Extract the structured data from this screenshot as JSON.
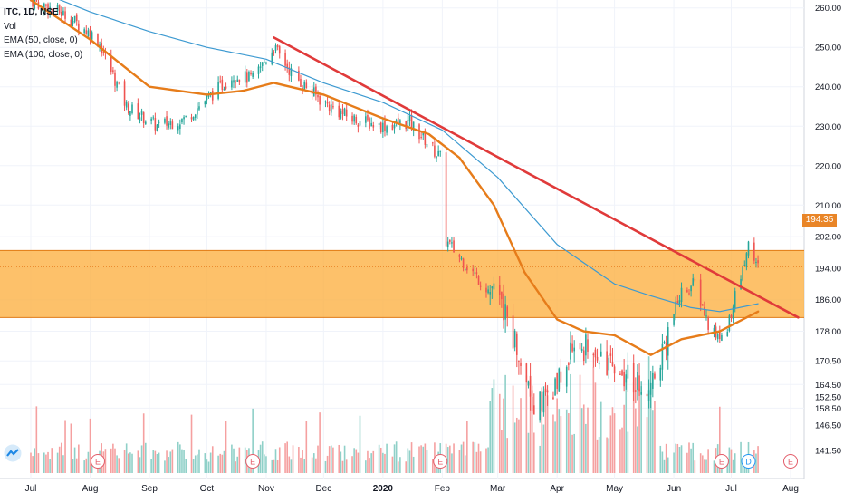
{
  "legend": {
    "symbol": "ITC, 1D, NSE",
    "vol": "Vol",
    "ema50": "EMA (50, close, 0)",
    "ema100": "EMA (100, close, 0)"
  },
  "current_price_label": "194.35",
  "colors": {
    "up": "#26a69a",
    "down": "#ef5350",
    "vol_up": "#8fd0c8",
    "vol_down": "#f5a0a0",
    "ema50": "#e67c1a",
    "ema100": "#3d9ad1",
    "trendline": "#e03a3a",
    "zone_fill": "#fcb040",
    "zone_border": "#e07a14",
    "price_tag": "#e98527",
    "event_marker": "#e35d6a",
    "dividend_marker": "#2196f3"
  },
  "event_markers": [
    "E",
    "E",
    "E",
    "E",
    "D",
    "E"
  ],
  "chart_data": {
    "type": "candlestick",
    "title": "ITC, 1D, NSE",
    "x_ticks": [
      "Jul",
      "Aug",
      "Sep",
      "Oct",
      "Nov",
      "Dec",
      "2020",
      "Feb",
      "Mar",
      "Apr",
      "May",
      "Jun",
      "Jul",
      "Aug"
    ],
    "y_ticks": [
      "260.00",
      "250.00",
      "240.00",
      "230.00",
      "220.00",
      "210.00",
      "202.00",
      "194.00",
      "186.00",
      "178.00",
      "170.50",
      "164.50",
      "158.50",
      "152.50",
      "146.50",
      "141.50"
    ],
    "current_price": 194.35,
    "zone": {
      "low": 181.5,
      "high": 198.5
    },
    "price_path_anchors": [
      [
        "2019-07-01",
        262
      ],
      [
        "2019-07-20",
        258
      ],
      [
        "2019-08-05",
        252
      ],
      [
        "2019-08-20",
        235
      ],
      [
        "2019-09-05",
        230
      ],
      [
        "2019-09-20",
        232
      ],
      [
        "2019-10-01",
        237
      ],
      [
        "2019-10-15",
        243
      ],
      [
        "2019-10-25",
        242
      ],
      [
        "2019-11-05",
        250
      ],
      [
        "2019-11-15",
        243
      ],
      [
        "2019-12-01",
        236
      ],
      [
        "2019-12-15",
        232
      ],
      [
        "2020-01-01",
        230
      ],
      [
        "2020-01-15",
        231
      ],
      [
        "2020-01-31",
        222
      ],
      [
        "2020-02-01",
        202
      ],
      [
        "2020-02-15",
        194
      ],
      [
        "2020-03-01",
        186
      ],
      [
        "2020-03-10",
        176
      ],
      [
        "2020-03-20",
        160
      ],
      [
        "2020-03-30",
        162
      ],
      [
        "2020-04-10",
        175
      ],
      [
        "2020-04-20",
        172
      ],
      [
        "2020-04-30",
        170
      ],
      [
        "2020-05-10",
        166
      ],
      [
        "2020-05-20",
        165
      ],
      [
        "2020-05-30",
        180
      ],
      [
        "2020-06-05",
        188
      ],
      [
        "2020-06-12",
        190
      ],
      [
        "2020-06-20",
        178
      ],
      [
        "2020-06-27",
        176
      ],
      [
        "2020-07-05",
        190
      ],
      [
        "2020-07-10",
        200
      ],
      [
        "2020-07-15",
        194.35
      ]
    ],
    "ema50_anchors": [
      [
        "2019-07-01",
        262
      ],
      [
        "2019-08-01",
        252
      ],
      [
        "2019-09-01",
        240
      ],
      [
        "2019-10-01",
        238
      ],
      [
        "2019-10-20",
        239
      ],
      [
        "2019-11-05",
        241
      ],
      [
        "2019-12-01",
        238
      ],
      [
        "2020-01-01",
        232
      ],
      [
        "2020-01-25",
        228
      ],
      [
        "2020-02-10",
        222
      ],
      [
        "2020-02-28",
        210
      ],
      [
        "2020-03-15",
        193
      ],
      [
        "2020-04-01",
        181
      ],
      [
        "2020-04-15",
        178
      ],
      [
        "2020-05-01",
        177
      ],
      [
        "2020-05-20",
        172
      ],
      [
        "2020-06-05",
        176
      ],
      [
        "2020-06-25",
        178
      ],
      [
        "2020-07-15",
        183
      ]
    ],
    "ema100_anchors": [
      [
        "2019-07-01",
        265
      ],
      [
        "2019-08-01",
        259
      ],
      [
        "2019-09-01",
        254
      ],
      [
        "2019-10-01",
        250
      ],
      [
        "2019-11-01",
        247
      ],
      [
        "2019-12-01",
        241
      ],
      [
        "2020-01-01",
        236
      ],
      [
        "2020-02-01",
        229
      ],
      [
        "2020-03-01",
        217
      ],
      [
        "2020-04-01",
        200
      ],
      [
        "2020-05-01",
        190
      ],
      [
        "2020-05-20",
        187
      ],
      [
        "2020-06-10",
        184
      ],
      [
        "2020-06-25",
        183
      ],
      [
        "2020-07-15",
        185
      ]
    ],
    "trendline": {
      "from": [
        "2019-11-05",
        252.5
      ],
      "to": [
        "2020-08-05",
        181.5
      ]
    }
  }
}
